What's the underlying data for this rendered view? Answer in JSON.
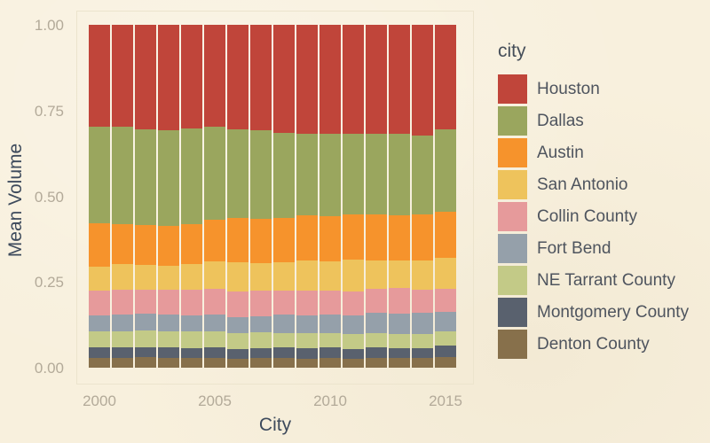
{
  "page": {
    "background_color": "#f8f0dd",
    "tick_text_color": "#b3aa99",
    "axis_title_color": "#3d4a5c",
    "legend_text_color": "#4e545e",
    "panel_border_color": "#ece4cd"
  },
  "legend": {
    "title": "city",
    "position": "right",
    "entries": [
      "Houston",
      "Dallas",
      "Austin",
      "San Antonio",
      "Collin County",
      "Fort Bend",
      "NE Tarrant County",
      "Montgomery County",
      "Denton County"
    ]
  },
  "chart_data": {
    "type": "bar",
    "stacked": true,
    "normalized_to_1": true,
    "title": "",
    "xlabel": "City",
    "ylabel": "Mean Volume",
    "ylim": [
      0,
      1
    ],
    "grid": false,
    "legend_position": "right",
    "x": [
      2000,
      2001,
      2002,
      2003,
      2004,
      2005,
      2006,
      2007,
      2008,
      2009,
      2010,
      2011,
      2012,
      2013,
      2014,
      2015
    ],
    "x_tick_labels": [
      "2000",
      "2005",
      "2010",
      "2015"
    ],
    "x_tick_years": [
      2000,
      2005,
      2010,
      2015
    ],
    "y_tick_labels": [
      "0.00",
      "0.25",
      "0.50",
      "0.75",
      "1.00"
    ],
    "y_tick_values": [
      0,
      0.25,
      0.5,
      0.75,
      1.0
    ],
    "series": [
      {
        "name": "Houston",
        "color": "#c0453a",
        "values": [
          0.296,
          0.296,
          0.305,
          0.307,
          0.302,
          0.298,
          0.305,
          0.308,
          0.315,
          0.317,
          0.317,
          0.319,
          0.319,
          0.319,
          0.322,
          0.305
        ]
      },
      {
        "name": "Dallas",
        "color": "#9aa65e",
        "values": [
          0.284,
          0.285,
          0.279,
          0.28,
          0.28,
          0.27,
          0.258,
          0.257,
          0.248,
          0.239,
          0.242,
          0.235,
          0.233,
          0.237,
          0.232,
          0.241
        ]
      },
      {
        "name": "Austin",
        "color": "#f6932c",
        "values": [
          0.125,
          0.117,
          0.115,
          0.116,
          0.116,
          0.121,
          0.129,
          0.129,
          0.13,
          0.131,
          0.131,
          0.131,
          0.135,
          0.131,
          0.134,
          0.134
        ]
      },
      {
        "name": "San Antonio",
        "color": "#eec35c",
        "values": [
          0.07,
          0.074,
          0.073,
          0.07,
          0.075,
          0.081,
          0.087,
          0.081,
          0.083,
          0.089,
          0.086,
          0.093,
          0.084,
          0.08,
          0.085,
          0.089
        ]
      },
      {
        "name": "Collin County",
        "color": "#e69a9b",
        "values": [
          0.073,
          0.073,
          0.07,
          0.072,
          0.074,
          0.075,
          0.075,
          0.076,
          0.069,
          0.071,
          0.069,
          0.069,
          0.069,
          0.075,
          0.067,
          0.067
        ]
      },
      {
        "name": "Fort Bend",
        "color": "#95a0aa",
        "values": [
          0.045,
          0.048,
          0.049,
          0.048,
          0.046,
          0.048,
          0.044,
          0.046,
          0.053,
          0.053,
          0.053,
          0.055,
          0.06,
          0.06,
          0.062,
          0.059
        ]
      },
      {
        "name": "NE Tarrant County",
        "color": "#c3ca87",
        "values": [
          0.048,
          0.048,
          0.049,
          0.048,
          0.049,
          0.048,
          0.047,
          0.047,
          0.043,
          0.043,
          0.043,
          0.043,
          0.04,
          0.041,
          0.04,
          0.041
        ]
      },
      {
        "name": "Montgomery County",
        "color": "#59616e",
        "values": [
          0.03,
          0.03,
          0.029,
          0.03,
          0.03,
          0.03,
          0.029,
          0.028,
          0.031,
          0.031,
          0.031,
          0.029,
          0.031,
          0.029,
          0.03,
          0.033
        ]
      },
      {
        "name": "Denton County",
        "color": "#87704b",
        "values": [
          0.029,
          0.029,
          0.031,
          0.029,
          0.028,
          0.029,
          0.026,
          0.028,
          0.028,
          0.026,
          0.028,
          0.026,
          0.029,
          0.028,
          0.028,
          0.031
        ]
      }
    ]
  }
}
